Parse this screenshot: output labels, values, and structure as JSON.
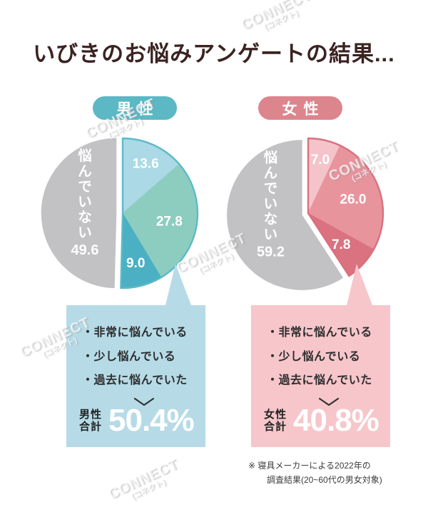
{
  "page_title": "いびきのお悩みアンゲートの結果...",
  "watermark": {
    "line1": "CONNECT",
    "line2": "(コネクト)"
  },
  "footnote": {
    "line1": "※ 寝具メーカーによる2022年の",
    "line2": "調査結果(20~60代の男女対象)"
  },
  "panels": [
    {
      "badge": "男性",
      "bullets": [
        "・非常に悩んでいる",
        "・少し悩んでいる",
        "・過去に悩んでいた"
      ],
      "total_label_line1": "男性",
      "total_label_line2": "合計",
      "total_value": "50.4%",
      "accent_color": "#5cb8c5",
      "box_color": "#b6dbe7"
    },
    {
      "badge": "女性",
      "bullets": [
        "・非常に悩んでいる",
        "・少し悩んでいる",
        "・過去に悩んでいた"
      ],
      "total_label_line1": "女性",
      "total_label_line2": "合計",
      "total_value": "40.8%",
      "accent_color": "#dd858d",
      "box_color": "#f6c6cb"
    }
  ],
  "chart_data": [
    {
      "type": "pie",
      "title": "男性",
      "unit": "%",
      "slices": [
        {
          "display": "13.6",
          "value": 13.6,
          "color": "#abd9e6"
        },
        {
          "display": "27.8",
          "value": 27.8,
          "color": "#8ccdc0"
        },
        {
          "display": "9.0",
          "value": 9.0,
          "color": "#4bb0c3"
        },
        {
          "display": "49.6",
          "value": 49.6,
          "color": "#c2c2c4",
          "name": "悩んでいない",
          "exploded": true
        }
      ],
      "outline_color": "#5dbac7",
      "total": {
        "label": "男性合計",
        "value": 50.4
      }
    },
    {
      "type": "pie",
      "title": "女性",
      "unit": "%",
      "slices": [
        {
          "display": "7.0",
          "value": 7.0,
          "color": "#f4c4ca"
        },
        {
          "display": "26.0",
          "value": 26.0,
          "color": "#e8949d"
        },
        {
          "display": "7.8",
          "value": 7.8,
          "color": "#da7280"
        },
        {
          "display": "59.2",
          "value": 59.2,
          "color": "#c2c2c4",
          "name": "悩んでいない",
          "exploded": true
        }
      ],
      "outline_color": "#d9707d",
      "total": {
        "label": "女性合計",
        "value": 40.8
      }
    }
  ]
}
